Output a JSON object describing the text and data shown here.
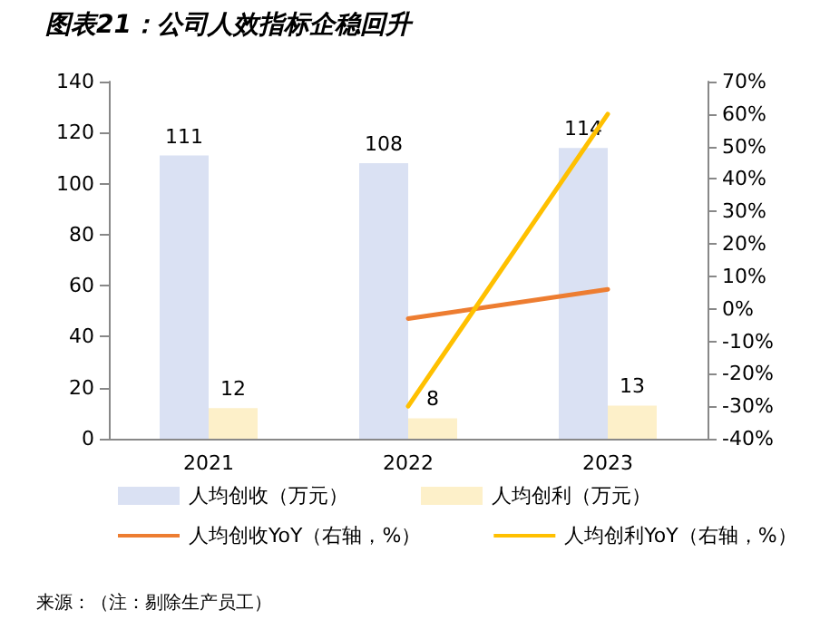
{
  "chart_data": {
    "type": "bar",
    "title": "图表21：公司人效指标企稳回升",
    "categories": [
      "2021",
      "2022",
      "2023"
    ],
    "series": [
      {
        "name": "人均创收（万元）",
        "color": "#dae1f3",
        "values": [
          111,
          108,
          114
        ],
        "value_labels": [
          "111",
          "108",
          "114"
        ]
      },
      {
        "name": "人均创利（万元）",
        "color": "#fdf0c9",
        "values": [
          12,
          8,
          13
        ],
        "value_labels": [
          "12",
          "8",
          "13"
        ]
      },
      {
        "name": "人均创收YoY（右轴，%）",
        "type": "line",
        "axis": "y2",
        "color": "#ed7d31",
        "values": [
          null,
          -3,
          6
        ]
      },
      {
        "name": "人均创利YoY（右轴，%）",
        "type": "line",
        "axis": "y2",
        "color": "#ffc000",
        "values": [
          null,
          -30,
          60
        ]
      }
    ],
    "ylim": [
      0,
      140
    ],
    "yticks": [
      0,
      20,
      40,
      60,
      80,
      100,
      120,
      140
    ],
    "y2lim": [
      -40,
      70
    ],
    "y2ticks": [
      {
        "value": -40,
        "label": "-40%"
      },
      {
        "value": -30,
        "label": "-30%"
      },
      {
        "value": -20,
        "label": "-20%"
      },
      {
        "value": -10,
        "label": "-10%"
      },
      {
        "value": 0,
        "label": "0%"
      },
      {
        "value": 10,
        "label": "10%"
      },
      {
        "value": 20,
        "label": "20%"
      },
      {
        "value": 30,
        "label": "30%"
      },
      {
        "value": 40,
        "label": "40%"
      },
      {
        "value": 50,
        "label": "50%"
      },
      {
        "value": 60,
        "label": "60%"
      },
      {
        "value": 70,
        "label": "70%"
      }
    ],
    "grid": false,
    "legend": "bottom",
    "marker": "none",
    "line_style": "solid",
    "annotations": [
      "来源：（注：剔除生产员工）"
    ]
  }
}
